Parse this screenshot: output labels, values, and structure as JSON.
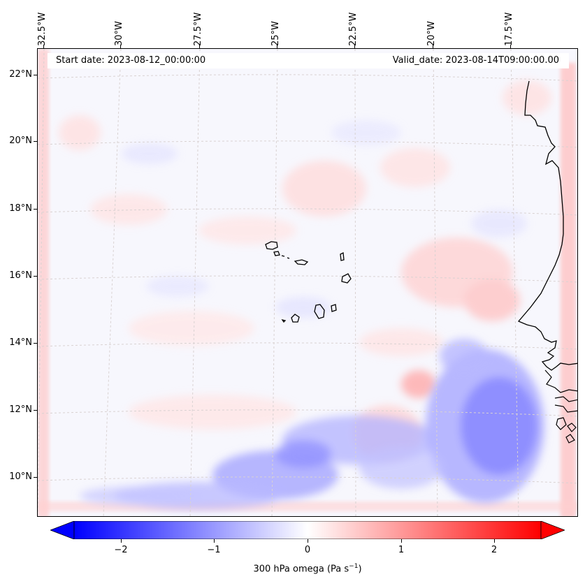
{
  "map": {
    "start_label": "Start date: 2023-08-12_00:00:00",
    "valid_label": "Valid_date: 2023-08-14T09:00:00.00",
    "lon_labels": [
      "32.5°W",
      "30°W",
      "27.5°W",
      "25°W",
      "22.5°W",
      "20°W",
      "17.5°W"
    ],
    "lat_labels": [
      "22°N",
      "20°N",
      "18°N",
      "16°N",
      "14°N",
      "12°N",
      "10°N"
    ],
    "field": "300 hPa omega",
    "region": "Cape Verde / West African coast"
  },
  "colorbar": {
    "ticks": [
      "−2",
      "−1",
      "0",
      "1",
      "2"
    ],
    "tick_values": [
      -2,
      -1,
      0,
      1,
      2
    ],
    "range": [
      -2.5,
      2.5
    ],
    "label_prefix": "300 hPa omega (Pa s",
    "label_exp": "−1",
    "label_suffix": ")",
    "colors": {
      "negative": "#0000ff",
      "zero": "#ffffff",
      "positive": "#ff0000"
    }
  }
}
